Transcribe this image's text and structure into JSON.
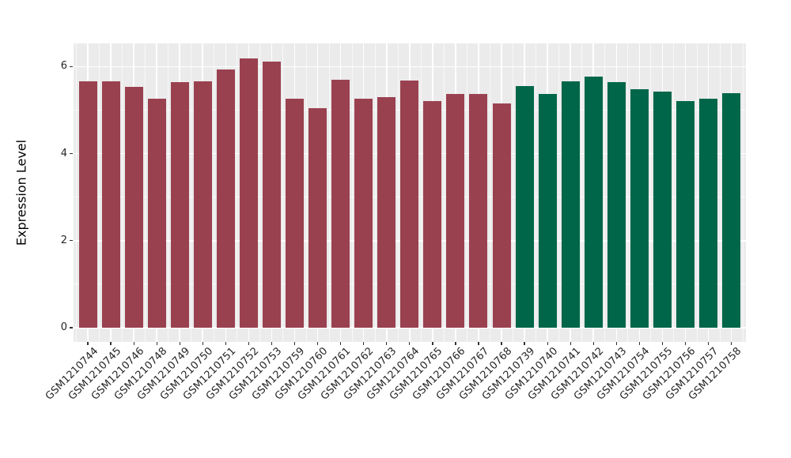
{
  "chart_data": {
    "type": "bar",
    "title": "",
    "xlabel": "",
    "ylabel": "Expression Level",
    "ylim": [
      0,
      6.55
    ],
    "y_ticks": [
      0,
      2,
      4,
      6
    ],
    "y_minor_ticks": [
      1,
      3,
      5
    ],
    "grid": "on",
    "legend": "none",
    "panel_bg": "#EBEBEB",
    "grid_color": "#FFFFFF",
    "axis_text_color": "#262626",
    "tick_mark_color": "#333333",
    "group_colors": {
      "left_group": "#9A4150",
      "right_group": "#006649"
    },
    "bars": [
      {
        "label": "GSM1210744",
        "value": 5.67,
        "group": "left_group"
      },
      {
        "label": "GSM1210745",
        "value": 5.67,
        "group": "left_group"
      },
      {
        "label": "GSM1210746",
        "value": 5.53,
        "group": "left_group"
      },
      {
        "label": "GSM1210748",
        "value": 5.26,
        "group": "left_group"
      },
      {
        "label": "GSM1210749",
        "value": 5.64,
        "group": "left_group"
      },
      {
        "label": "GSM1210750",
        "value": 5.66,
        "group": "left_group"
      },
      {
        "label": "GSM1210751",
        "value": 5.93,
        "group": "left_group"
      },
      {
        "label": "GSM1210752",
        "value": 6.19,
        "group": "left_group"
      },
      {
        "label": "GSM1210753",
        "value": 6.11,
        "group": "left_group"
      },
      {
        "label": "GSM1210759",
        "value": 5.27,
        "group": "left_group"
      },
      {
        "label": "GSM1210760",
        "value": 5.05,
        "group": "left_group"
      },
      {
        "label": "GSM1210761",
        "value": 5.7,
        "group": "left_group"
      },
      {
        "label": "GSM1210762",
        "value": 5.26,
        "group": "left_group"
      },
      {
        "label": "GSM1210763",
        "value": 5.3,
        "group": "left_group"
      },
      {
        "label": "GSM1210764",
        "value": 5.68,
        "group": "left_group"
      },
      {
        "label": "GSM1210765",
        "value": 5.2,
        "group": "left_group"
      },
      {
        "label": "GSM1210766",
        "value": 5.37,
        "group": "left_group"
      },
      {
        "label": "GSM1210767",
        "value": 5.38,
        "group": "left_group"
      },
      {
        "label": "GSM1210768",
        "value": 5.16,
        "group": "left_group"
      },
      {
        "label": "GSM1210739",
        "value": 5.55,
        "group": "right_group"
      },
      {
        "label": "GSM1210740",
        "value": 5.37,
        "group": "right_group"
      },
      {
        "label": "GSM1210741",
        "value": 5.67,
        "group": "right_group"
      },
      {
        "label": "GSM1210742",
        "value": 5.78,
        "group": "right_group"
      },
      {
        "label": "GSM1210743",
        "value": 5.64,
        "group": "right_group"
      },
      {
        "label": "GSM1210754",
        "value": 5.48,
        "group": "right_group"
      },
      {
        "label": "GSM1210755",
        "value": 5.42,
        "group": "right_group"
      },
      {
        "label": "GSM1210756",
        "value": 5.2,
        "group": "right_group"
      },
      {
        "label": "GSM1210757",
        "value": 5.27,
        "group": "right_group"
      },
      {
        "label": "GSM1210758",
        "value": 5.39,
        "group": "right_group"
      }
    ]
  }
}
